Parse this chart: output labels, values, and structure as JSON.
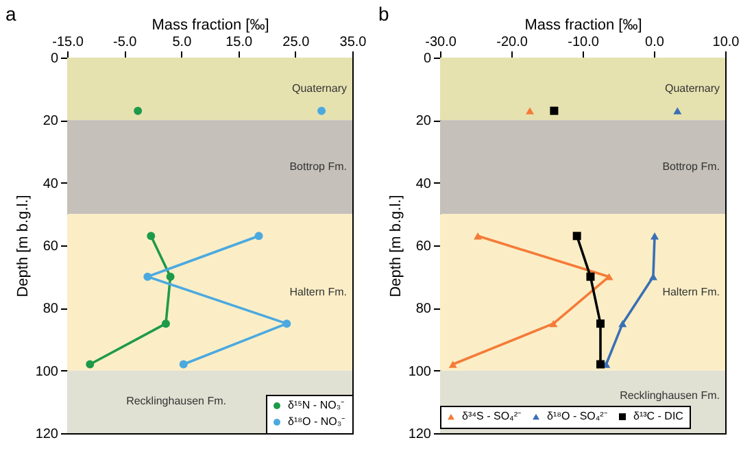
{
  "chart_data": [
    {
      "type": "line",
      "annotations": [
        "a"
      ],
      "xlabel": "Mass fraction [‰]",
      "ylabel": "Depth [m b.g.l.]",
      "xlim": [
        -15,
        35
      ],
      "xticks": [
        {
          "value": -15,
          "label": "-15.0"
        },
        {
          "value": -5,
          "label": "-5.0"
        },
        {
          "value": 5,
          "label": "5.0"
        },
        {
          "value": 15,
          "label": "15.0"
        },
        {
          "value": 25,
          "label": "25.0"
        },
        {
          "value": 35,
          "label": "35.0"
        }
      ],
      "ylim": [
        120,
        0
      ],
      "yticks": [
        0,
        20,
        40,
        60,
        80,
        100,
        120
      ],
      "marker": "circle",
      "legend": "bottom right",
      "bands": [
        {
          "axis": "y",
          "from": 0,
          "to": 20,
          "label": "Quaternary",
          "color": "#e6e2b0"
        },
        {
          "axis": "y",
          "from": 20,
          "to": 50,
          "label": "Bottrop Fm.",
          "color": "#c5c0b9"
        },
        {
          "axis": "y",
          "from": 50,
          "to": 100,
          "label": "Haltern Fm.",
          "color": "#fbeec6"
        },
        {
          "axis": "y",
          "from": 100,
          "to": 120,
          "label": "Recklinghausen Fm.",
          "color": "#e0e0d3"
        }
      ],
      "series": [
        {
          "name": "δ¹⁵N - NO₃⁻",
          "color": "#1e9a4a",
          "x": [
            -2.6,
            null,
            -0.3,
            3.1,
            2.3,
            -11
          ],
          "values": [
            17,
            null,
            57,
            70,
            85,
            98
          ]
        },
        {
          "name": "δ¹⁸O - NO₃⁻",
          "color": "#4ba9e0",
          "x": [
            29.6,
            null,
            18.6,
            -0.9,
            23.5,
            5.4
          ],
          "values": [
            17,
            null,
            57,
            70,
            85,
            98
          ]
        }
      ]
    },
    {
      "type": "line",
      "annotations": [
        "b"
      ],
      "xlabel": "Mass fraction [‰]",
      "ylabel": "Depth [m b.g.l.]",
      "xlim": [
        -30,
        10
      ],
      "xticks": [
        {
          "value": -30,
          "label": "-30.0"
        },
        {
          "value": -20,
          "label": "-20.0"
        },
        {
          "value": -10,
          "label": "-10.0"
        },
        {
          "value": 0,
          "label": "0.0"
        },
        {
          "value": 10,
          "label": "10.0"
        }
      ],
      "ylim": [
        120,
        0
      ],
      "yticks": [
        0,
        20,
        40,
        60,
        80,
        100,
        120
      ],
      "legend": "bottom",
      "bands": [
        {
          "axis": "y",
          "from": 0,
          "to": 20,
          "label": "Quaternary",
          "color": "#e6e2b0"
        },
        {
          "axis": "y",
          "from": 20,
          "to": 50,
          "label": "Bottrop Fm.",
          "color": "#c5c0b9"
        },
        {
          "axis": "y",
          "from": 50,
          "to": 100,
          "label": "Haltern Fm.",
          "color": "#fbeec6"
        },
        {
          "axis": "y",
          "from": 100,
          "to": 120,
          "label": "Recklinghausen Fm.",
          "color": "#e0e0d3"
        }
      ],
      "series": [
        {
          "name": "δ³⁴S - SO₄²⁻",
          "color": "#f47b38",
          "marker": "triangle",
          "x": [
            -17.4,
            null,
            -24.7,
            -6.3,
            -14.1,
            -28.2
          ],
          "values": [
            17,
            null,
            57,
            70,
            85,
            98
          ]
        },
        {
          "name": "δ¹⁸O - SO₄²⁻",
          "color": "#3a6fb5",
          "marker": "triangle",
          "x": [
            3.3,
            null,
            0.1,
            -0.1,
            -4.4,
            -6.7
          ],
          "values": [
            17,
            null,
            57,
            70,
            85,
            98
          ]
        },
        {
          "name": "δ¹³C - DIC",
          "color": "#000000",
          "marker": "square",
          "x": [
            -14.0,
            null,
            -10.8,
            -8.9,
            -7.5,
            -7.5
          ],
          "values": [
            17,
            null,
            57,
            70,
            85,
            98
          ]
        }
      ]
    }
  ]
}
